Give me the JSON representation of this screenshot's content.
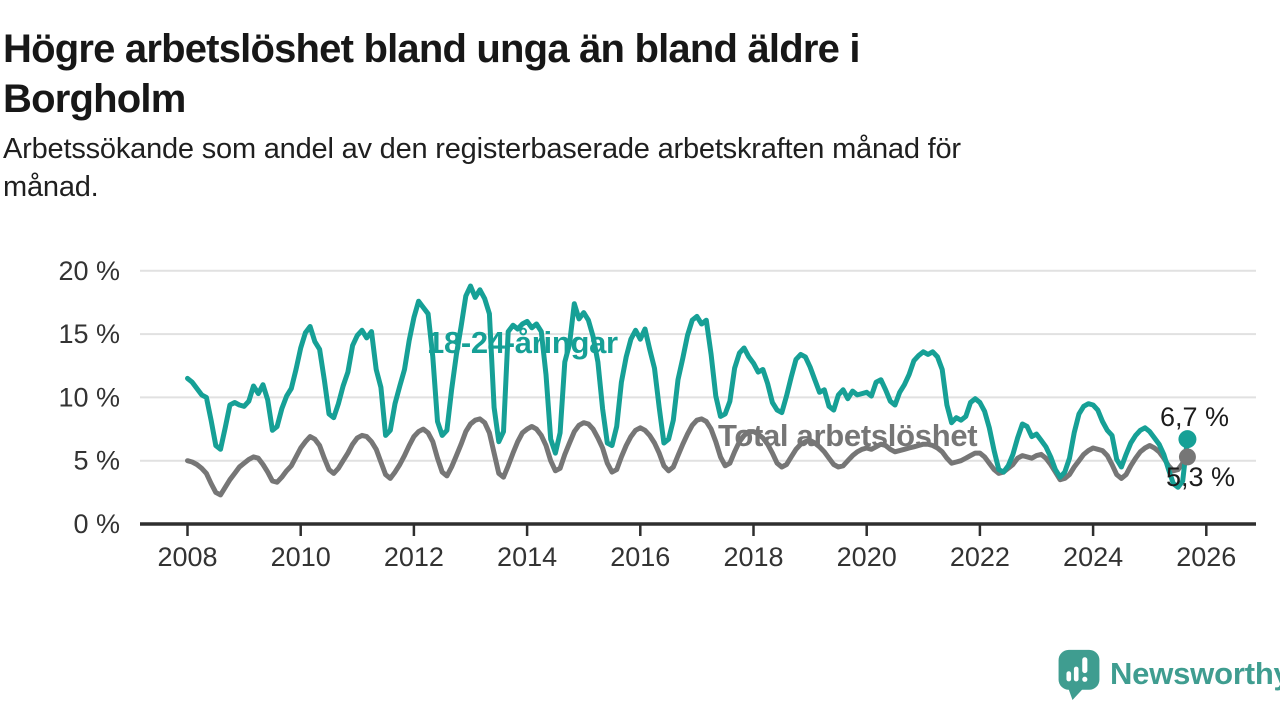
{
  "header": {
    "title": "Högre arbetslöshet bland unga än bland äldre i\nBorgholm",
    "subtitle": "Arbetssökande som andel av den registerbaserade arbetskraften månad för\nmånad."
  },
  "chart_data": {
    "type": "line",
    "title": "Högre arbetslöshet bland unga än bland äldre i Borgholm",
    "x_unit": "month",
    "x_start": "2008-01",
    "x_end": "2025-09",
    "x_ticks": [
      2008,
      2010,
      2012,
      2014,
      2016,
      2018,
      2020,
      2022,
      2024,
      2026
    ],
    "ylim": [
      0,
      20
    ],
    "grid": true,
    "legend_position": "inline-labels",
    "y_ticks": [
      {
        "value": 0,
        "label": "0 %"
      },
      {
        "value": 5,
        "label": "5 %"
      },
      {
        "value": 10,
        "label": "10 %"
      },
      {
        "value": 15,
        "label": "15 %"
      },
      {
        "value": 20,
        "label": "20 %"
      }
    ],
    "series": [
      {
        "name": "18-24-åringar",
        "color": "#16a096",
        "end_label": "6,7 %",
        "end_value": 6.7,
        "values": [
          11.5,
          11.2,
          10.7,
          10.2,
          10.0,
          8.2,
          6.2,
          5.9,
          7.6,
          9.4,
          9.6,
          9.4,
          9.3,
          9.7,
          10.9,
          10.3,
          11.0,
          9.8,
          7.4,
          7.7,
          9.1,
          10.1,
          10.7,
          12.2,
          13.9,
          15.1,
          15.6,
          14.4,
          13.8,
          11.4,
          8.7,
          8.4,
          9.5,
          10.9,
          12.0,
          14.1,
          14.9,
          15.3,
          14.7,
          15.2,
          12.2,
          10.8,
          7.0,
          7.4,
          9.5,
          10.9,
          12.2,
          14.5,
          16.3,
          17.6,
          17.1,
          16.6,
          13.2,
          8.1,
          7.0,
          7.4,
          10.6,
          13.4,
          15.6,
          18.0,
          18.8,
          17.9,
          18.5,
          17.8,
          16.6,
          9.2,
          6.5,
          7.3,
          15.2,
          15.7,
          15.4,
          15.8,
          16.0,
          15.5,
          15.8,
          15.2,
          11.8,
          6.7,
          5.6,
          7.2,
          12.8,
          14.2,
          17.4,
          16.2,
          16.7,
          16.1,
          14.8,
          12.8,
          9.1,
          6.4,
          6.2,
          7.7,
          11.2,
          13.2,
          14.6,
          15.3,
          14.6,
          15.4,
          13.8,
          12.3,
          9.2,
          6.4,
          6.7,
          8.2,
          11.4,
          13.1,
          14.9,
          16.1,
          16.4,
          15.8,
          16.1,
          13.4,
          10.1,
          8.5,
          8.7,
          9.7,
          12.3,
          13.5,
          13.9,
          13.2,
          12.7,
          12.0,
          12.2,
          11.1,
          9.6,
          9.0,
          8.8,
          10.1,
          11.6,
          13.0,
          13.4,
          13.2,
          12.4,
          11.4,
          10.4,
          10.6,
          9.3,
          9.0,
          10.2,
          10.6,
          9.9,
          10.5,
          10.2,
          10.3,
          10.4,
          10.1,
          11.2,
          11.4,
          10.6,
          9.7,
          9.4,
          10.4,
          11.0,
          11.8,
          12.9,
          13.3,
          13.6,
          13.4,
          13.6,
          13.2,
          12.2,
          9.4,
          8.0,
          8.4,
          8.2,
          8.5,
          9.6,
          9.9,
          9.6,
          8.9,
          7.6,
          5.8,
          4.3,
          4.1,
          4.6,
          5.5,
          6.8,
          7.9,
          7.7,
          6.9,
          7.1,
          6.6,
          6.1,
          5.3,
          4.3,
          3.7,
          4.1,
          5.2,
          7.2,
          8.7,
          9.3,
          9.5,
          9.4,
          9.0,
          8.1,
          7.4,
          7.0,
          5.1,
          4.5,
          5.5,
          6.4,
          7.0,
          7.4,
          7.6,
          7.3,
          6.8,
          6.3,
          5.5,
          4.3,
          3.2,
          2.9,
          3.4,
          6.7
        ]
      },
      {
        "name": "Total arbetslöshet",
        "color": "#767676",
        "end_label": "5,3 %",
        "end_value": 5.3,
        "values": [
          5.0,
          4.9,
          4.7,
          4.4,
          4.0,
          3.2,
          2.5,
          2.3,
          2.9,
          3.5,
          4.0,
          4.5,
          4.8,
          5.1,
          5.3,
          5.2,
          4.7,
          4.1,
          3.4,
          3.3,
          3.7,
          4.2,
          4.6,
          5.3,
          6.0,
          6.5,
          6.9,
          6.7,
          6.2,
          5.2,
          4.3,
          4.0,
          4.4,
          5.0,
          5.6,
          6.3,
          6.8,
          7.0,
          6.9,
          6.5,
          5.9,
          4.9,
          3.9,
          3.6,
          4.1,
          4.7,
          5.4,
          6.2,
          6.9,
          7.3,
          7.5,
          7.2,
          6.5,
          5.2,
          4.1,
          3.8,
          4.5,
          5.4,
          6.3,
          7.3,
          7.9,
          8.2,
          8.3,
          8.0,
          7.2,
          5.6,
          4.0,
          3.7,
          4.6,
          5.6,
          6.5,
          7.2,
          7.5,
          7.7,
          7.5,
          7.0,
          6.2,
          5.0,
          4.2,
          4.4,
          5.5,
          6.4,
          7.3,
          7.8,
          8.0,
          7.9,
          7.5,
          6.8,
          6.0,
          4.8,
          4.1,
          4.3,
          5.3,
          6.2,
          6.9,
          7.4,
          7.6,
          7.4,
          7.0,
          6.4,
          5.6,
          4.6,
          4.2,
          4.5,
          5.4,
          6.3,
          7.1,
          7.8,
          8.2,
          8.3,
          8.1,
          7.5,
          6.5,
          5.3,
          4.6,
          4.8,
          5.7,
          6.5,
          7.0,
          7.3,
          7.3,
          7.1,
          6.8,
          6.3,
          5.6,
          4.8,
          4.5,
          4.7,
          5.3,
          5.9,
          6.3,
          6.5,
          6.6,
          6.4,
          6.1,
          5.7,
          5.2,
          4.7,
          4.5,
          4.6,
          5.0,
          5.4,
          5.7,
          5.9,
          6.0,
          5.9,
          6.1,
          6.3,
          6.2,
          5.9,
          5.7,
          5.8,
          5.9,
          6.0,
          6.1,
          6.2,
          6.3,
          6.3,
          6.2,
          6.0,
          5.7,
          5.2,
          4.8,
          4.9,
          5.0,
          5.2,
          5.4,
          5.6,
          5.6,
          5.3,
          4.8,
          4.3,
          4.0,
          4.1,
          4.4,
          4.7,
          5.2,
          5.4,
          5.3,
          5.2,
          5.4,
          5.5,
          5.2,
          4.7,
          4.1,
          3.5,
          3.6,
          3.9,
          4.5,
          5.0,
          5.5,
          5.8,
          6.0,
          5.9,
          5.8,
          5.4,
          4.7,
          3.9,
          3.6,
          3.9,
          4.6,
          5.2,
          5.7,
          6.0,
          6.2,
          6.0,
          5.7,
          5.2,
          4.6,
          4.2,
          4.3,
          4.8,
          5.3
        ]
      }
    ],
    "colors": {
      "grid": "#e1e1e1",
      "axis": "#2e2e2e",
      "tick_text": "#333333",
      "value_label_text": "#1c1c1c"
    }
  },
  "branding": {
    "logo_text": "Newsworthy",
    "logo_color": "#3f9d90"
  }
}
